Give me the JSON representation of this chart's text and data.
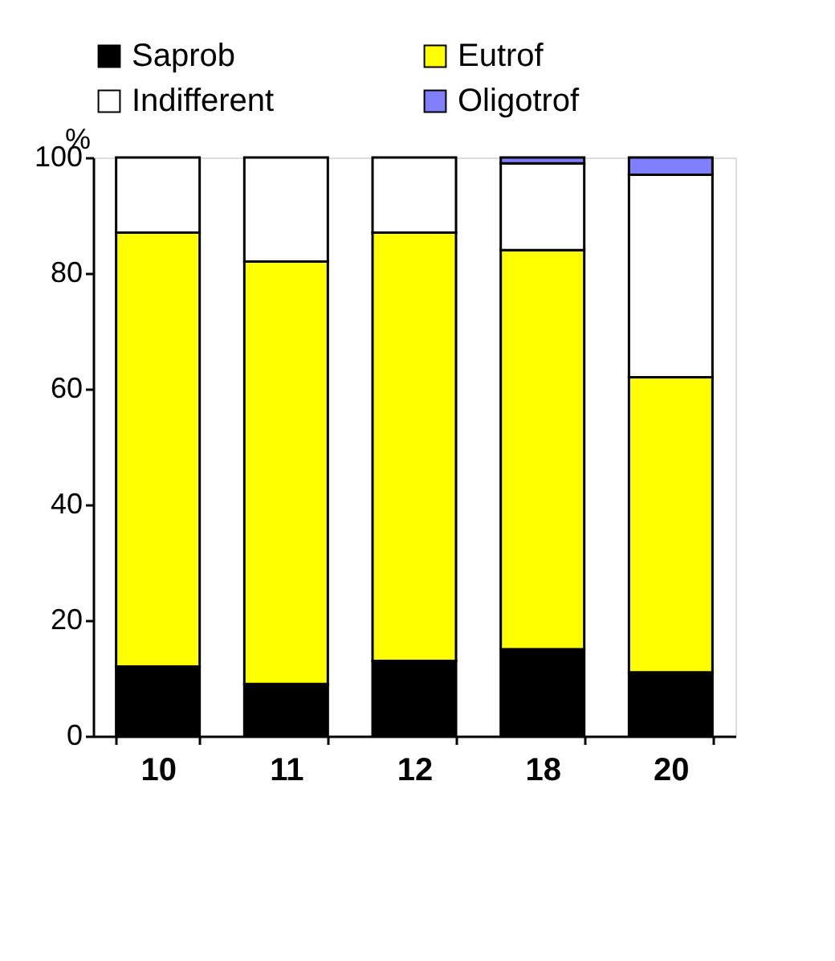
{
  "chart_data": {
    "type": "bar",
    "stacked": true,
    "ylabel": "%",
    "categories": [
      "10",
      "11",
      "12",
      "18",
      "20"
    ],
    "series": [
      {
        "name": "Saprob",
        "color": "#000000",
        "values": [
          12,
          9,
          13,
          15,
          11
        ]
      },
      {
        "name": "Eutrof",
        "color": "#ffff00",
        "values": [
          75,
          73,
          74,
          69,
          51
        ]
      },
      {
        "name": "Indifferent",
        "color": "#ffffff",
        "values": [
          13,
          18,
          13,
          15,
          35
        ]
      },
      {
        "name": "Oligotrof",
        "color": "#8080ff",
        "values": [
          null,
          null,
          null,
          1,
          3
        ]
      }
    ],
    "ylim": [
      0,
      100
    ],
    "yticks": [
      0,
      20,
      40,
      60,
      80,
      100
    ],
    "grid": false,
    "legend": "top"
  }
}
